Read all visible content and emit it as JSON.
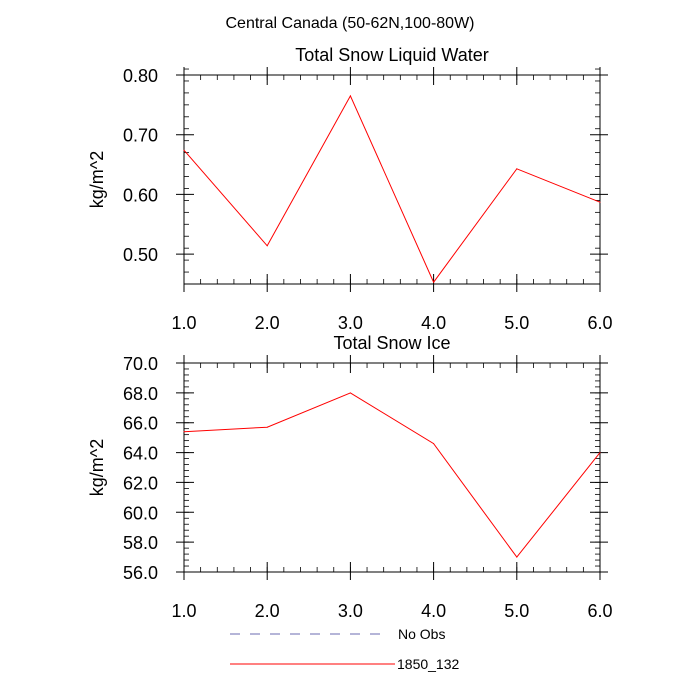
{
  "figure": {
    "suptitle": "Central Canada (50-62N,100-80W)"
  },
  "legend": {
    "placement": "bottom-center",
    "entries": [
      {
        "label": "No Obs",
        "style": "dashed",
        "color": "#6b6bb0"
      },
      {
        "label": "1850_132",
        "style": "solid",
        "color": "#ff0000"
      }
    ]
  },
  "chart_data": [
    {
      "type": "line",
      "title": "Total Snow Liquid Water",
      "xlabel": "",
      "ylabel": "kg/m^2",
      "xlim": [
        1.0,
        6.0
      ],
      "ylim": [
        0.45,
        0.8
      ],
      "xticks": [
        1.0,
        2.0,
        3.0,
        4.0,
        5.0,
        6.0
      ],
      "xtick_labels": [
        "1.0",
        "2.0",
        "3.0",
        "4.0",
        "5.0",
        "6.0"
      ],
      "yticks": [
        0.5,
        0.6,
        0.7,
        0.8
      ],
      "ytick_labels": [
        "0.50",
        "0.60",
        "0.70",
        "0.80"
      ],
      "y_minor_step": 0.02,
      "x_minor_step": 0.2,
      "grid": false,
      "x": [
        1,
        2,
        3,
        4,
        5,
        6
      ],
      "series": [
        {
          "name": "1850_132",
          "color": "#ff0000",
          "values": [
            0.674,
            0.514,
            0.765,
            0.453,
            0.643,
            0.587
          ]
        }
      ]
    },
    {
      "type": "line",
      "title": "Total Snow Ice",
      "xlabel": "",
      "ylabel": "kg/m^2",
      "xlim": [
        1.0,
        6.0
      ],
      "ylim": [
        56.0,
        70.0
      ],
      "xticks": [
        1.0,
        2.0,
        3.0,
        4.0,
        5.0,
        6.0
      ],
      "xtick_labels": [
        "1.0",
        "2.0",
        "3.0",
        "4.0",
        "5.0",
        "6.0"
      ],
      "yticks": [
        56,
        58,
        60,
        62,
        64,
        66,
        68,
        70
      ],
      "ytick_labels": [
        "56.0",
        "58.0",
        "60.0",
        "62.0",
        "64.0",
        "66.0",
        "68.0",
        "70.0"
      ],
      "y_minor_step": 0.4,
      "x_minor_step": 0.2,
      "grid": false,
      "x": [
        1,
        2,
        3,
        4,
        5,
        6
      ],
      "series": [
        {
          "name": "1850_132",
          "color": "#ff0000",
          "values": [
            65.4,
            65.7,
            68.0,
            64.6,
            57.0,
            64.0
          ]
        }
      ]
    }
  ]
}
